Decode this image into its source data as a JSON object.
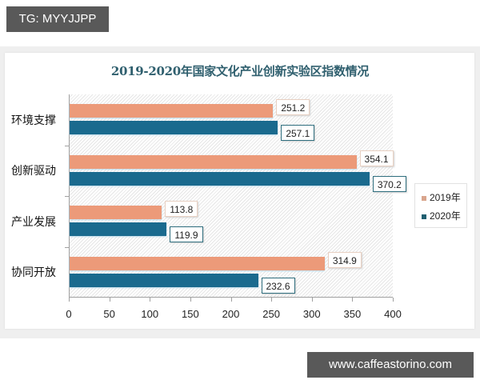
{
  "watermark_top": "TG: MYYJJPP",
  "watermark_bottom": "www.caffeastorino.com",
  "colors": {
    "series_2019": "#ec9a79",
    "series_2020": "#1a6a8e"
  },
  "chart_data": {
    "type": "bar",
    "orientation": "horizontal",
    "title": "2019-2020年国家文化产业创新实验区指数情况",
    "categories": [
      "环境支撑",
      "创新驱动",
      "产业发展",
      "协同开放"
    ],
    "series": [
      {
        "name": "2019年",
        "values": [
          251.2,
          354.1,
          113.8,
          314.9
        ],
        "labels": [
          "251.2",
          "354.1",
          "113.8",
          "314.9"
        ]
      },
      {
        "name": "2020年",
        "values": [
          257.1,
          370.2,
          119.9,
          232.6
        ],
        "labels": [
          "257.1",
          "370.2",
          "119.9",
          "232.6"
        ]
      }
    ],
    "xlabel": "",
    "ylabel": "",
    "xlim": [
      0,
      400
    ],
    "xticks": [
      "0",
      "50",
      "100",
      "150",
      "200",
      "250",
      "300",
      "350",
      "400"
    ],
    "grid": false,
    "legend_position": "right",
    "data_labels": true
  }
}
